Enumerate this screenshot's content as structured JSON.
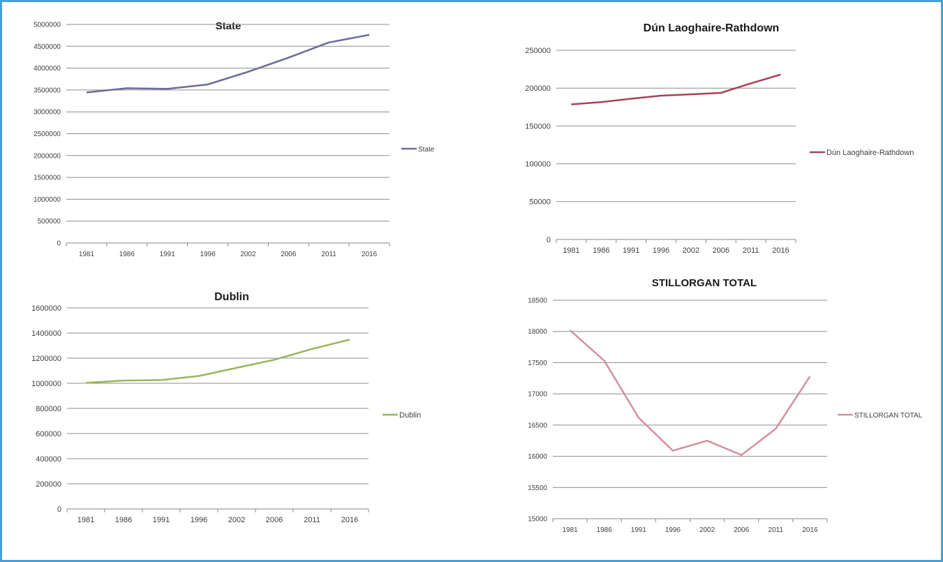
{
  "chart_data": [
    {
      "type": "line",
      "title": "State",
      "categories": [
        "1981",
        "1986",
        "1991",
        "1996",
        "2002",
        "2006",
        "2011",
        "2016"
      ],
      "series": [
        {
          "name": "State",
          "color": "#6b6b9b",
          "values": [
            3443405,
            3540643,
            3525719,
            3626087,
            3917203,
            4239848,
            4588252,
            4761865
          ]
        }
      ],
      "ylim": [
        0,
        5000000
      ],
      "yticks": [
        0,
        500000,
        1000000,
        1500000,
        2000000,
        2500000,
        3000000,
        3500000,
        4000000,
        4500000,
        5000000
      ],
      "grid": true,
      "legend": "right"
    },
    {
      "type": "line",
      "title": "Dún Laoghaire-Rathdown",
      "categories": [
        "1981",
        "1986",
        "1991",
        "1996",
        "2002",
        "2006",
        "2011",
        "2016"
      ],
      "series": [
        {
          "name": "Dún Laoghaire-Rathdown",
          "color": "#a8405a",
          "values": [
            178500,
            181500,
            186000,
            190000,
            191800,
            193700,
            206300,
            218000
          ]
        }
      ],
      "ylim": [
        0,
        250000
      ],
      "yticks": [
        0,
        50000,
        100000,
        150000,
        200000,
        250000
      ],
      "grid": true,
      "legend": "right"
    },
    {
      "type": "line",
      "title": "Dublin",
      "categories": [
        "1981",
        "1986",
        "1991",
        "1996",
        "2002",
        "2006",
        "2011",
        "2016"
      ],
      "series": [
        {
          "name": "Dublin",
          "color": "#9bb55a",
          "values": [
            1003164,
            1021449,
            1025304,
            1058264,
            1122821,
            1187176,
            1273069,
            1347359
          ]
        }
      ],
      "ylim": [
        0,
        1600000
      ],
      "yticks": [
        0,
        200000,
        400000,
        600000,
        800000,
        1000000,
        1200000,
        1400000,
        1600000
      ],
      "grid": true,
      "legend": "right"
    },
    {
      "type": "line",
      "title": "STILLORGAN TOTAL",
      "categories": [
        "1981",
        "1986",
        "1991",
        "1996",
        "2002",
        "2006",
        "2011",
        "2016"
      ],
      "series": [
        {
          "name": "STILLORGAN TOTAL",
          "color": "#d4909f",
          "values": [
            18020,
            17530,
            16620,
            16090,
            16250,
            16020,
            16440,
            17280
          ]
        }
      ],
      "ylim": [
        15000,
        18500
      ],
      "yticks": [
        15000,
        15500,
        16000,
        16500,
        17000,
        17500,
        18000,
        18500
      ],
      "grid": true,
      "legend": "right"
    }
  ]
}
